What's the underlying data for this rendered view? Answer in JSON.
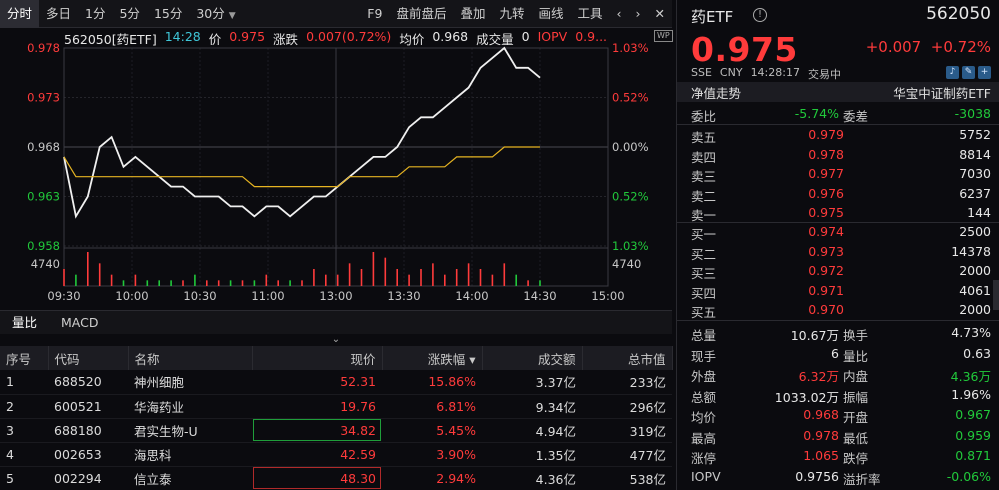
{
  "toolbar": {
    "left": [
      "分时",
      "多日",
      "1分",
      "5分",
      "15分",
      "30分"
    ],
    "right": [
      "F9",
      "盘前盘后",
      "叠加",
      "九转",
      "画线",
      "工具"
    ]
  },
  "chart_info": {
    "code_name": "562050[药ETF]",
    "time": "14:28",
    "price_label": "价",
    "price": "0.975",
    "change_label": "涨跌",
    "change": "0.007(0.72%)",
    "avg_label": "均价",
    "avg": "0.968",
    "volume_label": "成交量",
    "volume": "0",
    "iopv_label": "IOPV",
    "iopv": "0.9..."
  },
  "chart_data": {
    "type": "line",
    "y_left_ticks": [
      "0.978",
      "0.973",
      "0.968",
      "0.963",
      "0.958"
    ],
    "y_right_ticks": [
      "1.03%",
      "0.52%",
      "0.00%",
      "0.52%",
      "1.03%"
    ],
    "x_ticks": [
      "09:30",
      "10:00",
      "10:30",
      "11:00",
      "13:00",
      "13:30",
      "14:00",
      "14:30",
      "15:00"
    ],
    "volume_tick": "4740",
    "ylim": [
      0.958,
      0.978
    ],
    "prev_close": 0.968,
    "series": [
      {
        "name": "价",
        "values": [
          0.967,
          0.961,
          0.963,
          0.968,
          0.969,
          0.966,
          0.967,
          0.966,
          0.965,
          0.964,
          0.964,
          0.963,
          0.963,
          0.963,
          0.962,
          0.962,
          0.961,
          0.962,
          0.962,
          0.961,
          0.962,
          0.963,
          0.963,
          0.964,
          0.965,
          0.966,
          0.967,
          0.967,
          0.968,
          0.97,
          0.971,
          0.971,
          0.972,
          0.973,
          0.974,
          0.976,
          0.977,
          0.978,
          0.976,
          0.976,
          0.975
        ]
      },
      {
        "name": "均价",
        "values": [
          0.967,
          0.965,
          0.965,
          0.965,
          0.965,
          0.965,
          0.965,
          0.965,
          0.965,
          0.965,
          0.965,
          0.965,
          0.965,
          0.965,
          0.965,
          0.965,
          0.964,
          0.964,
          0.964,
          0.964,
          0.964,
          0.964,
          0.964,
          0.964,
          0.965,
          0.965,
          0.965,
          0.965,
          0.965,
          0.966,
          0.966,
          0.966,
          0.966,
          0.967,
          0.967,
          0.967,
          0.967,
          0.968,
          0.968,
          0.968,
          0.968
        ]
      }
    ],
    "volumes": [
      3,
      2,
      6,
      4,
      2,
      1,
      2,
      1,
      1,
      1,
      1,
      2,
      1,
      1,
      1,
      1,
      1,
      2,
      1,
      1,
      1,
      3,
      2,
      2,
      4,
      3,
      6,
      5,
      3,
      2,
      3,
      4,
      2,
      3,
      4,
      3,
      2,
      4,
      2,
      1,
      1
    ]
  },
  "indicator_tabs": [
    "量比",
    "MACD"
  ],
  "table": {
    "headers": [
      "序号",
      "代码",
      "名称",
      "现价",
      "涨跌幅 ▾",
      "成交额",
      "总市值"
    ],
    "rows": [
      [
        "1",
        "688520",
        "神州细胞",
        "52.31",
        "15.86%",
        "3.37亿",
        "233亿"
      ],
      [
        "2",
        "600521",
        "华海药业",
        "19.76",
        "6.81%",
        "9.34亿",
        "296亿"
      ],
      [
        "3",
        "688180",
        "君实生物-U",
        "34.82",
        "5.45%",
        "4.94亿",
        "319亿"
      ],
      [
        "4",
        "002653",
        "海思科",
        "42.59",
        "3.90%",
        "1.35亿",
        "477亿"
      ],
      [
        "5",
        "002294",
        "信立泰",
        "48.30",
        "2.94%",
        "4.36亿",
        "538亿"
      ]
    ]
  },
  "panel": {
    "name": "药ETF",
    "code": "562050",
    "price": "0.975",
    "change": "+0.007",
    "change_pct": "+0.72%",
    "meta": [
      "SSE",
      "CNY",
      "14:28:17",
      "交易中"
    ],
    "bar_left": "净值走势",
    "bar_right": "华宝中证制药ETF",
    "weibi_label": "委比",
    "weibi": "-5.74%",
    "weicha_label": "委差",
    "weicha": "-3038",
    "asks": [
      {
        "label": "卖五",
        "price": "0.979",
        "vol": "5752"
      },
      {
        "label": "卖四",
        "price": "0.978",
        "vol": "8814"
      },
      {
        "label": "卖三",
        "price": "0.977",
        "vol": "7030"
      },
      {
        "label": "卖二",
        "price": "0.976",
        "vol": "6237"
      },
      {
        "label": "卖一",
        "price": "0.975",
        "vol": "144"
      }
    ],
    "bids": [
      {
        "label": "买一",
        "price": "0.974",
        "vol": "2500"
      },
      {
        "label": "买二",
        "price": "0.973",
        "vol": "14378"
      },
      {
        "label": "买三",
        "price": "0.972",
        "vol": "2000"
      },
      {
        "label": "买四",
        "price": "0.971",
        "vol": "4061"
      },
      {
        "label": "买五",
        "price": "0.970",
        "vol": "2000"
      }
    ],
    "stats": [
      {
        "l1": "总量",
        "v1": "10.67万",
        "l2": "换手",
        "v2": "4.73%",
        "c1": "white",
        "c2": "white"
      },
      {
        "l1": "现手",
        "v1": "6",
        "l2": "量比",
        "v2": "0.63",
        "c1": "white",
        "c2": "white"
      },
      {
        "l1": "外盘",
        "v1": "6.32万",
        "l2": "内盘",
        "v2": "4.36万",
        "c1": "red",
        "c2": "green"
      },
      {
        "l1": "总额",
        "v1": "1033.02万",
        "l2": "振幅",
        "v2": "1.96%",
        "c1": "white",
        "c2": "white"
      },
      {
        "l1": "均价",
        "v1": "0.968",
        "l2": "开盘",
        "v2": "0.967",
        "c1": "red",
        "c2": "green"
      },
      {
        "l1": "最高",
        "v1": "0.978",
        "l2": "最低",
        "v2": "0.959",
        "c1": "red",
        "c2": "green"
      },
      {
        "l1": "涨停",
        "v1": "1.065",
        "l2": "跌停",
        "v2": "0.871",
        "c1": "red",
        "c2": "green"
      },
      {
        "l1": "IOPV",
        "v1": "0.9756",
        "l2": "溢折率",
        "v2": "-0.06%",
        "c1": "white",
        "c2": "green"
      }
    ]
  }
}
